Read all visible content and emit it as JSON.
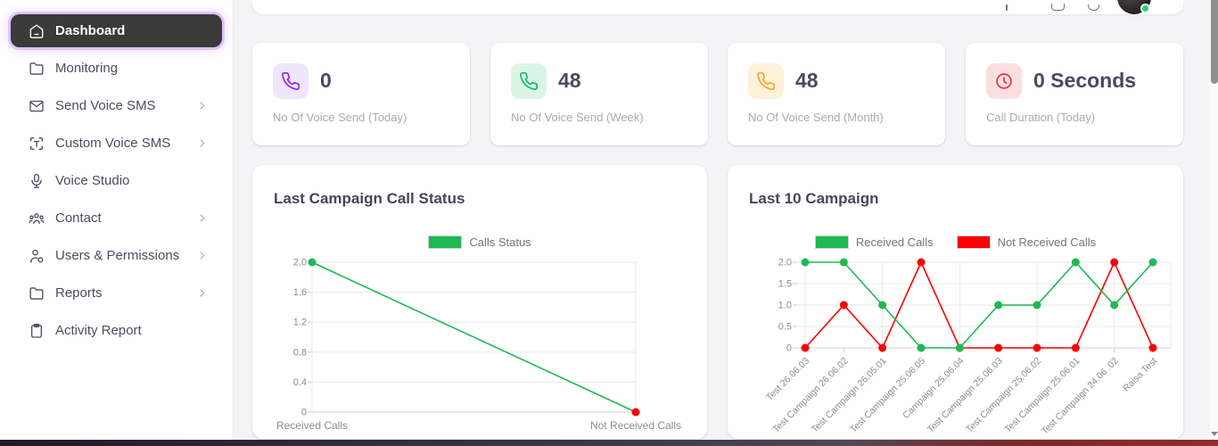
{
  "theme": {
    "sidebar_active_bg": "#3a3a3a",
    "sidebar_active_ring": "#d0a6fc",
    "online": "#1ed760",
    "green": "#1db954",
    "red": "#fb0000"
  },
  "sidebar": {
    "items": [
      {
        "label": "Dashboard",
        "icon": "home-icon",
        "active": true,
        "has_submenu": false
      },
      {
        "label": "Monitoring",
        "icon": "folder-icon",
        "active": false,
        "has_submenu": false
      },
      {
        "label": "Send Voice SMS",
        "icon": "mail-icon",
        "active": false,
        "has_submenu": true
      },
      {
        "label": "Custom Voice SMS",
        "icon": "text-brackets-icon",
        "active": false,
        "has_submenu": true
      },
      {
        "label": "Voice Studio",
        "icon": "microphone-icon",
        "active": false,
        "has_submenu": false
      },
      {
        "label": "Contact",
        "icon": "people-icon",
        "active": false,
        "has_submenu": true
      },
      {
        "label": "Users & Permissions",
        "icon": "user-gear-icon",
        "active": false,
        "has_submenu": true
      },
      {
        "label": "Reports",
        "icon": "folder-icon",
        "active": false,
        "has_submenu": true
      },
      {
        "label": "Activity Report",
        "icon": "clipboard-icon",
        "active": false,
        "has_submenu": false
      }
    ]
  },
  "header": {
    "avatar_online": true
  },
  "stat_cards": [
    {
      "value": "0",
      "label": "No Of Voice Send (Today)",
      "icon": "phone-icon",
      "icon_color": "#9125e6",
      "icon_bg": "#efe6fc"
    },
    {
      "value": "48",
      "label": "No Of Voice Send (Week)",
      "icon": "phone-icon",
      "icon_color": "#12b76a",
      "icon_bg": "#d9f6e5"
    },
    {
      "value": "48",
      "label": "No Of Voice Send (Month)",
      "icon": "phone-icon",
      "icon_color": "#f5a623",
      "icon_bg": "#fdf1da"
    },
    {
      "value": "0 Seconds",
      "label": "Call Duration (Today)",
      "icon": "clock-icon",
      "icon_color": "#e8323c",
      "icon_bg": "#fcdfe1"
    }
  ],
  "chart_data": [
    {
      "id": "last_campaign_call_status",
      "type": "line",
      "title": "Last Campaign Call Status",
      "categories": [
        "Received Calls",
        "Not Received Calls"
      ],
      "series": [
        {
          "name": "Calls Status",
          "color": "#1db954",
          "values": [
            2,
            0
          ],
          "point_colors": [
            "#1db954",
            "#fb0000"
          ]
        }
      ],
      "ylim": [
        0,
        2
      ],
      "yticks": [
        0,
        0.4,
        0.8,
        1.2,
        1.6,
        2.0
      ],
      "ytick_labels": [
        "0",
        "0.4",
        "0.8",
        "1.2",
        "1.6",
        "2.0"
      ],
      "legend": [
        {
          "label": "Calls Status",
          "color": "#1db954"
        }
      ],
      "legend_position": "top",
      "grid": true
    },
    {
      "id": "last_10_campaign",
      "type": "line",
      "title": "Last 10 Campaign",
      "categories": [
        "Test 26.06.03",
        "Test Campaign 26.06.02",
        "Test Campaign 26.05.01",
        "Test Campaign 25.06.05",
        "Campaign 25.06.04",
        "Test Campaign 25.06.03",
        "Test Campaign 25.06.02",
        "Test Campaign 25.06.01",
        "Test Campaign 24.06 .02",
        "Raisa Test"
      ],
      "series": [
        {
          "name": "Not Received Calls",
          "color": "#fb0000",
          "values": [
            0,
            1,
            0,
            2,
            0,
            0,
            0,
            0,
            2,
            0
          ]
        },
        {
          "name": "Received Calls",
          "color": "#1db954",
          "values": [
            2,
            2,
            1,
            0,
            0,
            1,
            1,
            2,
            1,
            2
          ]
        }
      ],
      "ylim": [
        0,
        2
      ],
      "yticks": [
        0,
        0.5,
        1.0,
        1.5,
        2.0
      ],
      "ytick_labels": [
        "0",
        "0.5",
        "1.0",
        "1.5",
        "2.0"
      ],
      "legend": [
        {
          "label": "Received Calls",
          "color": "#1db954"
        },
        {
          "label": "Not Received Calls",
          "color": "#fb0000"
        }
      ],
      "legend_position": "top",
      "grid": true
    }
  ]
}
